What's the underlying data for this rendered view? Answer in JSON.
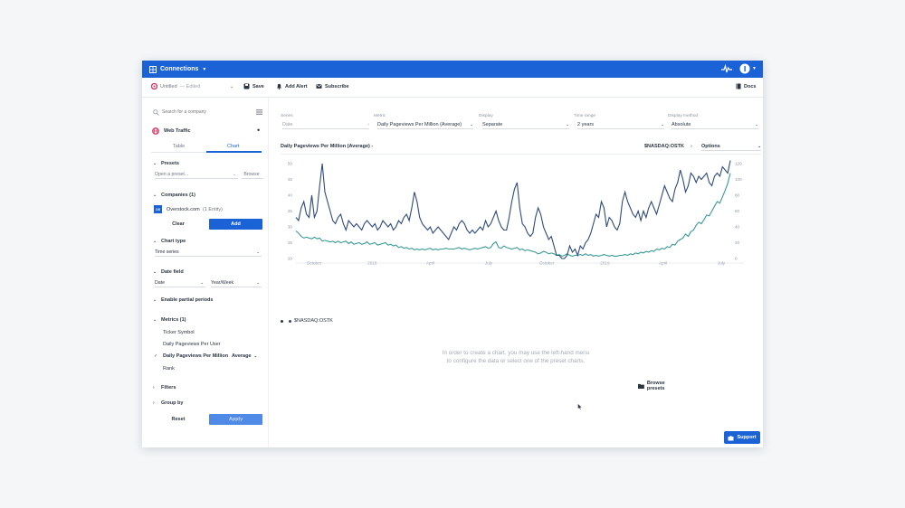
{
  "topbar": {
    "title": "Connections"
  },
  "toolbar": {
    "doc_title": "Untitled",
    "doc_state": "— Edited",
    "save_label": "Save",
    "alert_label": "Add Alert",
    "subscribe_label": "Subscribe",
    "docs_label": "Docs"
  },
  "sidebar": {
    "search_placeholder": "Search for a company",
    "dataset": "Web Traffic",
    "tabs": [
      "Table",
      "Chart"
    ],
    "presets": {
      "label": "Presets",
      "placeholder": "Open a preset...",
      "browse": "Browse"
    },
    "companies": {
      "label": "Companies (1)",
      "badge": "OS",
      "company": "Overstock.com",
      "entity": "(1 Entity)",
      "clear": "Clear",
      "add": "Add"
    },
    "chart_type": {
      "label": "Chart type",
      "value": "Time series"
    },
    "date_field": {
      "label": "Date field",
      "field": "Date",
      "granularity": "Year/Week"
    },
    "partial_periods": "Enable partial periods",
    "metrics": {
      "label": "Metrics (1)",
      "items": [
        "Ticker Symbol",
        "Daily Pageviews Per User",
        "Daily Pageviews Per Million",
        "Rank"
      ],
      "aggregation": "Average"
    },
    "filters": "Filters",
    "group_by": "Group by",
    "reset": "Reset",
    "apply": "Apply"
  },
  "controls": {
    "series": {
      "label": "Series",
      "value": "Date"
    },
    "metric": {
      "label": "Metric",
      "value": "Daily Pageviews Per Million (Average)"
    },
    "display": {
      "label": "Display",
      "value": "Separate"
    },
    "time_range": {
      "label": "Time range",
      "value": "2 years"
    },
    "display_method": {
      "label": "Display method",
      "value": "Absolute"
    }
  },
  "chart_header": {
    "title": "Daily Pageviews Per Million (Average) -",
    "ticker": "$NASDAQ:OSTK",
    "options": "Options"
  },
  "legend": {
    "series_name": "$NASDAQ:OSTK"
  },
  "empty_state": {
    "line1": "In order to create a chart, you may use the left-hand menu",
    "line2": "to configure the data or select one of the preset charts.",
    "browse": "Browse presets"
  },
  "support_label": "Support",
  "colors": {
    "accent": "#1a62d6",
    "series_pageviews": "#2f4b7c",
    "series_stock": "#3a9a96"
  },
  "chart_data": {
    "type": "line",
    "x_tick_labels": [
      "October",
      "2018",
      "April",
      "July",
      "October",
      "2019",
      "April",
      "July"
    ],
    "y_left_ticks": [
      20,
      25,
      30,
      35,
      40,
      45,
      50
    ],
    "y_right_ticks": [
      0,
      20,
      40,
      60,
      80,
      100,
      120
    ],
    "grid": false,
    "series": [
      {
        "axis": "left",
        "values": [
          33,
          32,
          36,
          38,
          34,
          33,
          40,
          33,
          35,
          43,
          50,
          41,
          38,
          35,
          32,
          31,
          33,
          34,
          31,
          29,
          32,
          31,
          30,
          31,
          30,
          29,
          31,
          32,
          31,
          30,
          31,
          29,
          30,
          32,
          31,
          30,
          31,
          29,
          30,
          32,
          31,
          33,
          34,
          32,
          36,
          41,
          38,
          33,
          31,
          30,
          29,
          30,
          28,
          29,
          30,
          29,
          28,
          27,
          26,
          28,
          30,
          29,
          31,
          32,
          31,
          29,
          28,
          29,
          28,
          29,
          30,
          29,
          32,
          30,
          31,
          33,
          35,
          32,
          30,
          29,
          29,
          33,
          38,
          42,
          44,
          36,
          31,
          30,
          28,
          27,
          28,
          33,
          36,
          34,
          30,
          28,
          26,
          27,
          24,
          21,
          21,
          20,
          20,
          21,
          24,
          22,
          23,
          21,
          24,
          23,
          25,
          26,
          28,
          31,
          34,
          33,
          38,
          36,
          30,
          33,
          32,
          30,
          29,
          31,
          38,
          41,
          38,
          36,
          34,
          33,
          35,
          32,
          35,
          33,
          36,
          38,
          36,
          34,
          37,
          40,
          43,
          41,
          39,
          38,
          42,
          44,
          48,
          45,
          41,
          43,
          47,
          46,
          44,
          46,
          45,
          46,
          47,
          44,
          43,
          46,
          47,
          46,
          49,
          48,
          47,
          51
        ]
      },
      {
        "axis": "right",
        "values": [
          35,
          32,
          28,
          26,
          27,
          26,
          25,
          27,
          25,
          26,
          22,
          23,
          22,
          21,
          22,
          20,
          22,
          20,
          21,
          22,
          19,
          21,
          18,
          19,
          20,
          18,
          19,
          21,
          18,
          19,
          20,
          17,
          18,
          19,
          20,
          17,
          18,
          16,
          17,
          14,
          15,
          13,
          14,
          12,
          13,
          11,
          12,
          11,
          12,
          11,
          12,
          13,
          11,
          12,
          11,
          12,
          12,
          13,
          12,
          12,
          12,
          13,
          14,
          12,
          13,
          12,
          11,
          12,
          13,
          12,
          13,
          14,
          15,
          13,
          14,
          19,
          21,
          14,
          13,
          16,
          14,
          13,
          12,
          13,
          14,
          11,
          12,
          10,
          11,
          10,
          9,
          8,
          6,
          7,
          9,
          8,
          6,
          7,
          6,
          4,
          5,
          3,
          4,
          6,
          4,
          3,
          4,
          4,
          5,
          4,
          6,
          4,
          5,
          3,
          4,
          3,
          4,
          5,
          4,
          3,
          4,
          3,
          3,
          4,
          4,
          5,
          4,
          6,
          5,
          7,
          6,
          8,
          7,
          9,
          8,
          10,
          9,
          12,
          11,
          13,
          12,
          15,
          14,
          18,
          17,
          22,
          24,
          26,
          31,
          28,
          34,
          36,
          42,
          46,
          44,
          49,
          55,
          54,
          60,
          66,
          72,
          70,
          78,
          86,
          95,
          108
        ]
      }
    ]
  }
}
